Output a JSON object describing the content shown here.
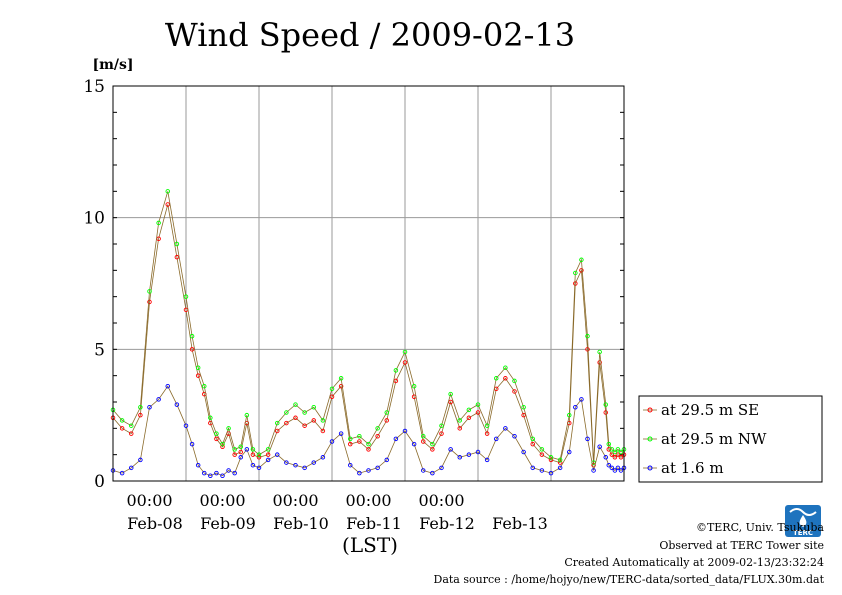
{
  "chart_data": {
    "type": "line",
    "title": "Wind Speed / 2009-02-13",
    "ylabel": "[m/s]",
    "xlabel": "(LST)",
    "ylim": [
      0,
      15
    ],
    "y_ticks": [
      "0",
      "5",
      "10",
      "15"
    ],
    "x_ticks_top": [
      "00:00",
      "00:00",
      "00:00",
      "00:00",
      "00:00"
    ],
    "x_ticks_bottom": [
      "Feb-08",
      "Feb-09",
      "Feb-10",
      "Feb-11",
      "Feb-12",
      "Feb-13"
    ],
    "grid": true,
    "legend_position": "right",
    "x_unit": "hours since 2009-02-07 08:00 LST",
    "series": [
      {
        "name": "at 29.5 m SE",
        "color": "#ff0000",
        "x": [
          0,
          3,
          6,
          9,
          12,
          15,
          18,
          21,
          24,
          26,
          28,
          30,
          32,
          34,
          36,
          38,
          40,
          42,
          44,
          46,
          48,
          51,
          54,
          57,
          60,
          63,
          66,
          69,
          72,
          75,
          78,
          81,
          84,
          87,
          90,
          93,
          96,
          99,
          102,
          105,
          108,
          111,
          114,
          117,
          120,
          123,
          126,
          129,
          132,
          135,
          138,
          141,
          144,
          147,
          150,
          152,
          154,
          156,
          158,
          160,
          162,
          163,
          164,
          165,
          166,
          167,
          168
        ],
        "values": [
          2.4,
          2.0,
          1.8,
          2.5,
          6.8,
          9.2,
          10.5,
          8.5,
          6.5,
          5.0,
          4.0,
          3.3,
          2.2,
          1.6,
          1.3,
          1.8,
          1.0,
          1.1,
          2.2,
          1.0,
          0.9,
          1.0,
          1.9,
          2.2,
          2.4,
          2.1,
          2.3,
          1.9,
          3.2,
          3.6,
          1.4,
          1.5,
          1.2,
          1.7,
          2.3,
          3.8,
          4.5,
          3.2,
          1.5,
          1.2,
          1.8,
          3.0,
          2.0,
          2.4,
          2.6,
          1.8,
          3.5,
          3.9,
          3.4,
          2.5,
          1.4,
          1.0,
          0.8,
          0.7,
          2.2,
          7.5,
          8.0,
          5.0,
          0.6,
          4.5,
          2.6,
          1.2,
          1.0,
          0.9,
          1.0,
          0.9,
          1.0
        ]
      },
      {
        "name": "at 29.5 m NW",
        "color": "#00ff00",
        "x": [
          0,
          3,
          6,
          9,
          12,
          15,
          18,
          21,
          24,
          26,
          28,
          30,
          32,
          34,
          36,
          38,
          40,
          42,
          44,
          46,
          48,
          51,
          54,
          57,
          60,
          63,
          66,
          69,
          72,
          75,
          78,
          81,
          84,
          87,
          90,
          93,
          96,
          99,
          102,
          105,
          108,
          111,
          114,
          117,
          120,
          123,
          126,
          129,
          132,
          135,
          138,
          141,
          144,
          147,
          150,
          152,
          154,
          156,
          158,
          160,
          162,
          163,
          164,
          165,
          166,
          167,
          168
        ],
        "values": [
          2.7,
          2.3,
          2.1,
          2.8,
          7.2,
          9.8,
          11.0,
          9.0,
          7.0,
          5.5,
          4.3,
          3.6,
          2.4,
          1.8,
          1.4,
          2.0,
          1.2,
          1.3,
          2.5,
          1.2,
          1.0,
          1.2,
          2.2,
          2.6,
          2.9,
          2.6,
          2.8,
          2.3,
          3.5,
          3.9,
          1.6,
          1.7,
          1.4,
          2.0,
          2.6,
          4.2,
          4.9,
          3.6,
          1.7,
          1.4,
          2.1,
          3.3,
          2.3,
          2.7,
          2.9,
          2.1,
          3.9,
          4.3,
          3.8,
          2.8,
          1.6,
          1.2,
          0.9,
          0.8,
          2.5,
          7.9,
          8.4,
          5.5,
          0.7,
          4.9,
          2.9,
          1.4,
          1.2,
          1.1,
          1.2,
          1.1,
          1.2
        ]
      },
      {
        "name": "at 1.6 m",
        "color": "#0000ff",
        "x": [
          0,
          3,
          6,
          9,
          12,
          15,
          18,
          21,
          24,
          26,
          28,
          30,
          32,
          34,
          36,
          38,
          40,
          42,
          44,
          46,
          48,
          51,
          54,
          57,
          60,
          63,
          66,
          69,
          72,
          75,
          78,
          81,
          84,
          87,
          90,
          93,
          96,
          99,
          102,
          105,
          108,
          111,
          114,
          117,
          120,
          123,
          126,
          129,
          132,
          135,
          138,
          141,
          144,
          147,
          150,
          152,
          154,
          156,
          158,
          160,
          162,
          163,
          164,
          165,
          166,
          167,
          168
        ],
        "values": [
          0.4,
          0.3,
          0.5,
          0.8,
          2.8,
          3.1,
          3.6,
          2.9,
          2.1,
          1.4,
          0.6,
          0.3,
          0.2,
          0.3,
          0.2,
          0.4,
          0.3,
          0.9,
          1.2,
          0.6,
          0.5,
          0.8,
          1.0,
          0.7,
          0.6,
          0.5,
          0.7,
          0.9,
          1.5,
          1.8,
          0.6,
          0.3,
          0.4,
          0.5,
          0.8,
          1.6,
          1.9,
          1.4,
          0.4,
          0.3,
          0.5,
          1.2,
          0.9,
          1.0,
          1.1,
          0.8,
          1.6,
          2.0,
          1.7,
          1.1,
          0.5,
          0.4,
          0.3,
          0.5,
          1.1,
          2.8,
          3.1,
          1.6,
          0.4,
          1.3,
          0.9,
          0.6,
          0.5,
          0.4,
          0.5,
          0.4,
          0.5
        ]
      }
    ]
  },
  "footer": {
    "copyright": "©TERC, Univ. Tsukuba",
    "observed": "Observed at TERC Tower site",
    "created": "Created Automatically at 2009-02-13/23:32:24",
    "source": "Data source : /home/hojyo/new/TERC-data/sorted_data/FLUX.30m.dat"
  },
  "logo": {
    "text": "TERC",
    "color": "#1e73be"
  }
}
